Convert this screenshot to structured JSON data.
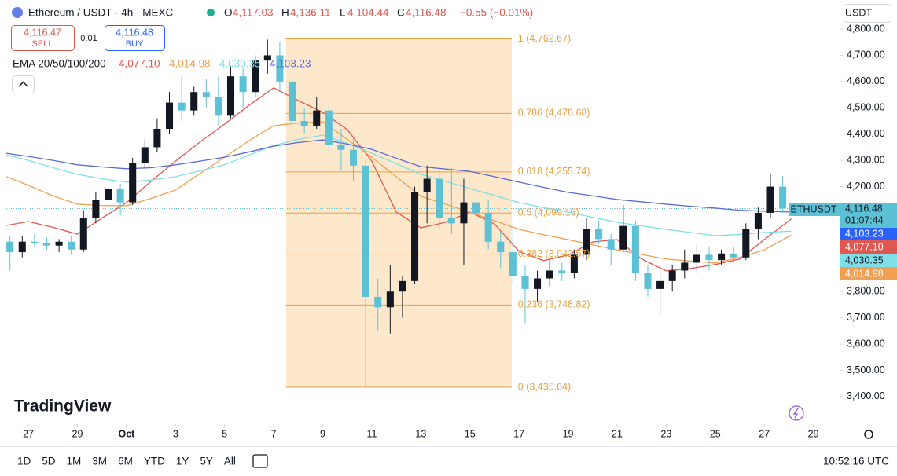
{
  "header": {
    "symbol": "Ethereum / USDT · 4h · MEXC",
    "ohlc": [
      {
        "key": "O",
        "value": "4,117.03"
      },
      {
        "key": "H",
        "value": "4,136.11"
      },
      {
        "key": "L",
        "value": "4,104.44"
      },
      {
        "key": "C",
        "value": "4,116.48"
      }
    ],
    "change": "−0.55 (−0.01%)",
    "sell": {
      "price": "4,116.47",
      "label": "SELL"
    },
    "spread": "0.01",
    "buy": {
      "price": "4,116.48",
      "label": "BUY"
    },
    "indicator": "EMA 20/50/100/200",
    "currency": "USDT",
    "symbol_tag": "ETHUSDT",
    "countdown": "01:07:44",
    "branding": "TradingView"
  },
  "chart_data": {
    "type": "candlestick",
    "grid": false,
    "up_color": "#131722",
    "down_color": "#5dc1d6",
    "xlim": [
      -0.9,
      33.07
    ],
    "ylim": [
      3295,
      4821
    ],
    "xticks": [
      {
        "value": 0,
        "label": "27"
      },
      {
        "value": 2,
        "label": "29"
      },
      {
        "value": 4,
        "label": "Oct"
      },
      {
        "value": 6,
        "label": "3"
      },
      {
        "value": 8,
        "label": "5"
      },
      {
        "value": 10,
        "label": "7"
      },
      {
        "value": 12,
        "label": "9"
      },
      {
        "value": 14,
        "label": "11"
      },
      {
        "value": 16,
        "label": "13"
      },
      {
        "value": 18,
        "label": "15"
      },
      {
        "value": 20,
        "label": "17"
      },
      {
        "value": 22,
        "label": "19"
      },
      {
        "value": 24,
        "label": "21"
      },
      {
        "value": 26,
        "label": "23"
      },
      {
        "value": 28,
        "label": "25"
      },
      {
        "value": 30,
        "label": "27"
      },
      {
        "value": 32,
        "label": "29"
      }
    ],
    "yticks": [
      {
        "value": 3400,
        "label": "3,400.00"
      },
      {
        "value": 3500,
        "label": "3,500.00"
      },
      {
        "value": 3600,
        "label": "3,600.00"
      },
      {
        "value": 3700,
        "label": "3,700.00"
      },
      {
        "value": 3800,
        "label": "3,800.00"
      },
      {
        "value": 3900,
        "label": "3,900.00"
      },
      {
        "value": 4000,
        "label": "4,000.00"
      },
      {
        "value": 4100,
        "label": "4,100.00"
      },
      {
        "value": 4200,
        "label": "4,200.00"
      },
      {
        "value": 4300,
        "label": "4,300.00"
      },
      {
        "value": 4400,
        "label": "4,400.00"
      },
      {
        "value": 4500,
        "label": "4,500.00"
      },
      {
        "value": 4600,
        "label": "4,600.00"
      },
      {
        "value": 4700,
        "label": "4,700.00"
      },
      {
        "value": 4800,
        "label": "4,800.00"
      }
    ],
    "candles": {
      "x": [
        -0.75,
        -0.25,
        0.25,
        0.75,
        1.25,
        1.75,
        2.25,
        2.75,
        3.25,
        3.75,
        4.25,
        4.75,
        5.25,
        5.75,
        6.25,
        6.75,
        7.25,
        7.75,
        8.25,
        8.75,
        9.25,
        9.75,
        10.25,
        10.75,
        11.25,
        11.75,
        12.25,
        12.75,
        13.25,
        13.75,
        14.25,
        14.75,
        15.25,
        15.75,
        16.25,
        16.75,
        17.25,
        17.75,
        18.25,
        18.75,
        19.25,
        19.75,
        20.25,
        20.75,
        21.25,
        21.75,
        22.25,
        22.75,
        23.25,
        23.75,
        24.25,
        24.75,
        25.25,
        25.75,
        26.25,
        26.75,
        27.25,
        27.75,
        28.25,
        28.75,
        29.25,
        29.75,
        30.25,
        30.75
      ],
      "open": [
        3990,
        3950,
        3990,
        3985,
        3975,
        3990,
        3960,
        4080,
        4150,
        4190,
        4140,
        4290,
        4350,
        4420,
        4520,
        4490,
        4560,
        4540,
        4470,
        4620,
        4560,
        4680,
        4700,
        4600,
        4450,
        4430,
        4490,
        4360,
        4340,
        4280,
        3780,
        3740,
        3800,
        3840,
        4180,
        4230,
        4080,
        4060,
        4140,
        4100,
        3990,
        3950,
        3860,
        3810,
        3850,
        3880,
        3870,
        3940,
        4040,
        4000,
        3960,
        4050,
        3870,
        3810,
        3840,
        3880,
        3910,
        3940,
        3920,
        3945,
        3930,
        4040,
        4100,
        4200
      ],
      "high": [
        4010,
        4010,
        4020,
        4005,
        4000,
        4010,
        4110,
        4180,
        4230,
        4210,
        4310,
        4380,
        4460,
        4560,
        4620,
        4580,
        4610,
        4620,
        4660,
        4650,
        4700,
        4760,
        4750,
        4610,
        4500,
        4540,
        4510,
        4420,
        4380,
        4300,
        3850,
        3900,
        3860,
        4200,
        4280,
        4260,
        4270,
        4230,
        4160,
        4150,
        4030,
        4060,
        3900,
        3880,
        3920,
        3910,
        3960,
        4080,
        4070,
        4020,
        4130,
        4070,
        3900,
        3880,
        3900,
        3960,
        3980,
        3970,
        3960,
        3970,
        4060,
        4120,
        4250,
        4240
      ],
      "low": [
        3880,
        3930,
        3970,
        3960,
        3950,
        3940,
        3950,
        4060,
        4120,
        4090,
        4130,
        4270,
        4330,
        4400,
        4450,
        4470,
        4500,
        4430,
        4460,
        4500,
        4540,
        4630,
        4560,
        4420,
        4400,
        4420,
        4330,
        4260,
        4220,
        3435,
        3650,
        3640,
        3700,
        3830,
        4060,
        4040,
        4020,
        3900,
        4000,
        3960,
        3890,
        3830,
        3680,
        3760,
        3820,
        3840,
        3850,
        3920,
        3980,
        3900,
        3950,
        3840,
        3780,
        3710,
        3800,
        3850,
        3870,
        3880,
        3900,
        3910,
        3920,
        4000,
        4080,
        4100
      ],
      "close": [
        3950,
        3990,
        3985,
        3975,
        3990,
        3960,
        4080,
        4150,
        4190,
        4140,
        4290,
        4350,
        4420,
        4520,
        4490,
        4560,
        4540,
        4470,
        4620,
        4560,
        4680,
        4700,
        4600,
        4450,
        4430,
        4490,
        4360,
        4340,
        4280,
        3780,
        3740,
        3800,
        3840,
        4180,
        4230,
        4080,
        4060,
        4140,
        4100,
        3990,
        3950,
        3860,
        3810,
        3850,
        3880,
        3870,
        3940,
        4040,
        4000,
        3960,
        4050,
        3870,
        3810,
        3840,
        3880,
        3910,
        3940,
        3920,
        3945,
        3930,
        4040,
        4100,
        4200,
        4116.48
      ]
    },
    "ema_x": [
      -0.9,
      0,
      1,
      2,
      3,
      4,
      5,
      6,
      7,
      8,
      9,
      10,
      11,
      12,
      13,
      14,
      15,
      16,
      17,
      18,
      19,
      20,
      21,
      22,
      23,
      24,
      25,
      26,
      27,
      28,
      29,
      30,
      31.1
    ],
    "series": [
      {
        "color": "#e0574f",
        "last_label": "4,077.10",
        "values": [
          4052,
          4067,
          4045,
          4019,
          4080,
          4139,
          4220,
          4297,
          4370,
          4438,
          4510,
          4576,
          4528,
          4483,
          4417,
          4297,
          4103,
          4043,
          4064,
          4103,
          4058,
          3953,
          3918,
          3939,
          3989,
          3998,
          3924,
          3879,
          3888,
          3903,
          3924,
          3998,
          4077.1
        ]
      },
      {
        "color": "#f0a050",
        "last_label": "4,014.98",
        "values": [
          4238,
          4205,
          4165,
          4133,
          4128,
          4127,
          4155,
          4187,
          4250,
          4312,
          4375,
          4432,
          4442,
          4447,
          4380,
          4312,
          4237,
          4163,
          4133,
          4103,
          4070,
          4037,
          4017,
          3998,
          3978,
          3959,
          3941,
          3924,
          3916,
          3909,
          3930,
          3959,
          4014.98
        ]
      },
      {
        "color": "#7fdfe8",
        "last_label": "4,030.35",
        "values": [
          4321,
          4300,
          4272,
          4247,
          4230,
          4217,
          4225,
          4238,
          4260,
          4283,
          4320,
          4357,
          4380,
          4396,
          4365,
          4327,
          4287,
          4247,
          4220,
          4193,
          4166,
          4139,
          4120,
          4103,
          4083,
          4064,
          4050,
          4037,
          4025,
          4013,
          4018,
          4025,
          4030.35
        ]
      },
      {
        "color": "#5b6bd6",
        "last_label": "4,103.23",
        "values": [
          4327,
          4315,
          4300,
          4283,
          4275,
          4268,
          4272,
          4283,
          4297,
          4312,
          4332,
          4354,
          4368,
          4378,
          4362,
          4342,
          4308,
          4276,
          4267,
          4258,
          4238,
          4217,
          4197,
          4178,
          4165,
          4151,
          4142,
          4133,
          4125,
          4118,
          4110,
          4106,
          4103.23
        ]
      }
    ],
    "last_price": {
      "value": 4116.48,
      "label": "4,116.48"
    },
    "fib_x": [
      10.5,
      19.7
    ],
    "fib_levels": [
      {
        "value": 4762.67,
        "label": "1 (4,762.67)"
      },
      {
        "value": 4478.68,
        "label": "0.786 (4,478.68)"
      },
      {
        "value": 4255.74,
        "label": "0.618 (4,255.74)"
      },
      {
        "value": 4099.15,
        "label": "0.5 (4,099.15)"
      },
      {
        "value": 3942.57,
        "label": "0.382 (3,942.57)"
      },
      {
        "value": 3748.82,
        "label": "0.236 (3,748.82)"
      },
      {
        "value": 3435.64,
        "label": "0 (3,435.64)"
      }
    ]
  },
  "toolbar": {
    "ranges": [
      "1D",
      "5D",
      "1M",
      "3M",
      "6M",
      "YTD",
      "1Y",
      "5Y",
      "All"
    ],
    "time": "10:52:16 UTC"
  }
}
